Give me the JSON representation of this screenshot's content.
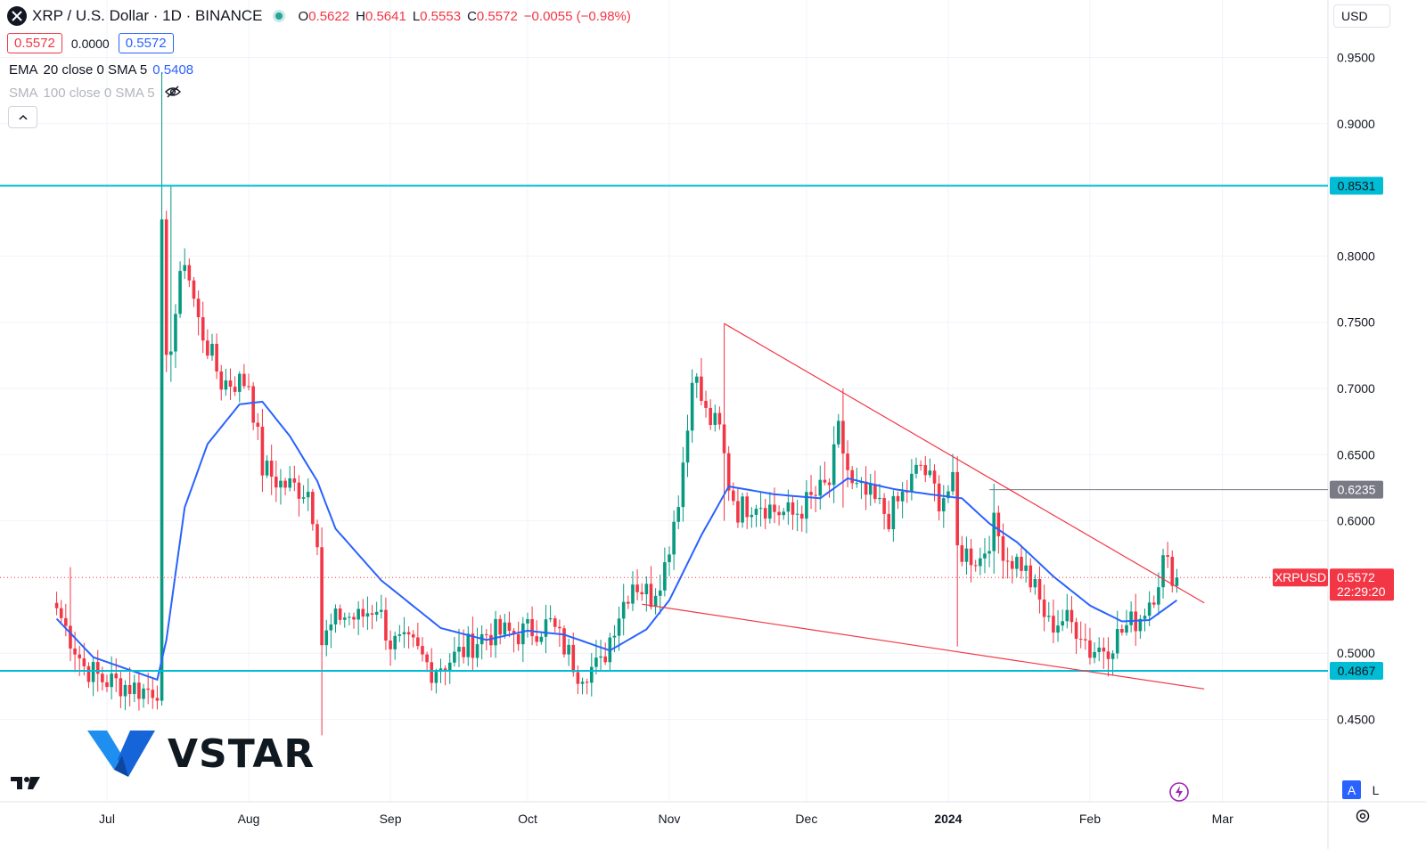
{
  "header": {
    "symbol": "XRP / U.S. Dollar · 1D · BINANCE",
    "open_label": "O",
    "open": "0.5622",
    "high_label": "H",
    "high": "0.5641",
    "low_label": "L",
    "low": "0.5553",
    "close_label": "C",
    "close": "0.5572",
    "change": "−0.0055 (−0.98%)",
    "symbol_icon": "x-icon",
    "status_icon": "market-open-dot-icon"
  },
  "price_boxes": {
    "bid": "0.5572",
    "spread": "0.0000",
    "ask": "0.5572"
  },
  "indicators": [
    {
      "name": "EMA",
      "params": "20 close 0 SMA 5",
      "value": "0.5408"
    },
    {
      "name": "SMA",
      "params": "100 close 0 SMA 5",
      "value": ""
    }
  ],
  "currency": "USD",
  "watermark": "VSTAR",
  "colors": {
    "up": "#089981",
    "down": "#f23645",
    "ema": "#2962ff",
    "support": "#00bcd4",
    "trend": "#f23645",
    "level": "#787b86"
  },
  "chart_data": {
    "type": "candlestick",
    "symbol": "XRPUSD",
    "y_ticks": [
      "0.9500",
      "0.9000",
      "0.8000",
      "0.7500",
      "0.7000",
      "0.6500",
      "0.6000",
      "0.5000",
      "0.4500"
    ],
    "x_ticks": [
      "Jul",
      "Aug",
      "Sep",
      "Oct",
      "Nov",
      "Dec",
      "2024",
      "Feb",
      "Mar"
    ],
    "ylim": [
      0.405,
      0.985
    ],
    "horizontal_levels": [
      {
        "value": "0.8531",
        "style": "support"
      },
      {
        "value": "0.4867",
        "style": "support"
      },
      {
        "value": "0.6235",
        "style": "level"
      }
    ],
    "last_price": {
      "label": "XRPUSD",
      "value": "0.5572",
      "countdown": "22:29:20"
    },
    "anchors": [
      [
        "2023-06-20",
        0.534
      ],
      [
        "2023-06-26",
        0.49
      ],
      [
        "2023-06-30",
        0.48
      ],
      [
        "2023-07-05",
        0.476
      ],
      [
        "2023-07-09",
        0.472
      ],
      [
        "2023-07-12",
        0.474
      ],
      [
        "2023-07-13",
        0.818
      ],
      [
        "2023-07-14",
        0.715
      ],
      [
        "2023-07-18",
        0.8
      ],
      [
        "2023-07-21",
        0.75
      ],
      [
        "2023-07-26",
        0.705
      ],
      [
        "2023-08-01",
        0.705
      ],
      [
        "2023-08-04",
        0.64
      ],
      [
        "2023-08-08",
        0.628
      ],
      [
        "2023-08-14",
        0.623
      ],
      [
        "2023-08-16",
        0.59
      ],
      [
        "2023-08-17",
        0.508
      ],
      [
        "2023-08-21",
        0.529
      ],
      [
        "2023-08-25",
        0.526
      ],
      [
        "2023-08-29",
        0.537
      ],
      [
        "2023-09-01",
        0.508
      ],
      [
        "2023-09-06",
        0.504
      ],
      [
        "2023-09-10",
        0.488
      ],
      [
        "2023-09-15",
        0.497
      ],
      [
        "2023-09-22",
        0.515
      ],
      [
        "2023-09-29",
        0.515
      ],
      [
        "2023-10-06",
        0.522
      ],
      [
        "2023-10-09",
        0.505
      ],
      [
        "2023-10-12",
        0.487
      ],
      [
        "2023-10-17",
        0.49
      ],
      [
        "2023-10-20",
        0.523
      ],
      [
        "2023-10-24",
        0.555
      ],
      [
        "2023-10-28",
        0.543
      ],
      [
        "2023-10-31",
        0.566
      ],
      [
        "2023-11-03",
        0.619
      ],
      [
        "2023-11-05",
        0.67
      ],
      [
        "2023-11-06",
        0.715
      ],
      [
        "2023-11-09",
        0.68
      ],
      [
        "2023-11-12",
        0.668
      ],
      [
        "2023-11-14",
        0.628
      ],
      [
        "2023-11-16",
        0.608
      ],
      [
        "2023-11-20",
        0.616
      ],
      [
        "2023-11-24",
        0.608
      ],
      [
        "2023-11-28",
        0.604
      ],
      [
        "2023-12-02",
        0.616
      ],
      [
        "2023-12-06",
        0.628
      ],
      [
        "2023-12-08",
        0.667
      ],
      [
        "2023-12-11",
        0.624
      ],
      [
        "2023-12-15",
        0.617
      ],
      [
        "2023-12-19",
        0.603
      ],
      [
        "2023-12-23",
        0.624
      ],
      [
        "2023-12-26",
        0.642
      ],
      [
        "2023-12-30",
        0.617
      ],
      [
        "2024-01-02",
        0.626
      ],
      [
        "2024-01-03",
        0.578
      ],
      [
        "2024-01-08",
        0.571
      ],
      [
        "2024-01-11",
        0.596
      ],
      [
        "2024-01-14",
        0.572
      ],
      [
        "2024-01-17",
        0.568
      ],
      [
        "2024-01-20",
        0.547
      ],
      [
        "2024-01-23",
        0.521
      ],
      [
        "2024-01-26",
        0.526
      ],
      [
        "2024-01-30",
        0.518
      ],
      [
        "2024-02-01",
        0.502
      ],
      [
        "2024-02-05",
        0.506
      ],
      [
        "2024-02-09",
        0.52
      ],
      [
        "2024-02-12",
        0.528
      ],
      [
        "2024-02-15",
        0.547
      ],
      [
        "2024-02-17",
        0.569
      ],
      [
        "2024-02-20",
        0.5572
      ]
    ],
    "ema_anchors": [
      [
        "2023-06-20",
        0.526
      ],
      [
        "2023-06-28",
        0.497
      ],
      [
        "2023-07-12",
        0.48
      ],
      [
        "2023-07-14",
        0.51
      ],
      [
        "2023-07-18",
        0.61
      ],
      [
        "2023-07-23",
        0.658
      ],
      [
        "2023-07-30",
        0.688
      ],
      [
        "2023-08-04",
        0.69
      ],
      [
        "2023-08-10",
        0.664
      ],
      [
        "2023-08-16",
        0.63
      ],
      [
        "2023-08-20",
        0.594
      ],
      [
        "2023-08-30",
        0.555
      ],
      [
        "2023-09-12",
        0.519
      ],
      [
        "2023-09-22",
        0.51
      ],
      [
        "2023-10-01",
        0.517
      ],
      [
        "2023-10-09",
        0.514
      ],
      [
        "2023-10-19",
        0.502
      ],
      [
        "2023-10-27",
        0.518
      ],
      [
        "2023-11-01",
        0.54
      ],
      [
        "2023-11-08",
        0.589
      ],
      [
        "2023-11-14",
        0.626
      ],
      [
        "2023-11-24",
        0.62
      ],
      [
        "2023-12-04",
        0.617
      ],
      [
        "2023-12-10",
        0.632
      ],
      [
        "2023-12-20",
        0.624
      ],
      [
        "2023-12-28",
        0.62
      ],
      [
        "2024-01-04",
        0.617
      ],
      [
        "2024-01-10",
        0.598
      ],
      [
        "2024-01-16",
        0.584
      ],
      [
        "2024-01-24",
        0.558
      ],
      [
        "2024-02-01",
        0.536
      ],
      [
        "2024-02-08",
        0.524
      ],
      [
        "2024-02-14",
        0.525
      ],
      [
        "2024-02-20",
        0.54
      ]
    ],
    "spikes": [
      {
        "date": "2023-07-13",
        "high": 0.939,
        "low": 0.471
      },
      {
        "date": "2023-07-15",
        "high": 0.853,
        "low": 0.705
      },
      {
        "date": "2023-08-17",
        "high": 0.595,
        "low": 0.438
      },
      {
        "date": "2023-11-13",
        "high": 0.749,
        "low": 0.6
      },
      {
        "date": "2023-12-09",
        "high": 0.7,
        "low": 0.61
      },
      {
        "date": "2024-01-03",
        "high": 0.628,
        "low": 0.505
      },
      {
        "date": "2024-01-11",
        "high": 0.628,
        "low": 0.56
      },
      {
        "date": "2023-06-23",
        "high": 0.565,
        "low": 0.515
      }
    ],
    "trendlines": [
      {
        "from": [
          "2023-11-13",
          0.749
        ],
        "to": [
          "2024-02-26",
          0.538
        ]
      },
      {
        "from": [
          "2023-10-26",
          0.537
        ],
        "to": [
          "2024-02-26",
          0.473
        ]
      }
    ],
    "level_line_from": "2024-01-10"
  }
}
